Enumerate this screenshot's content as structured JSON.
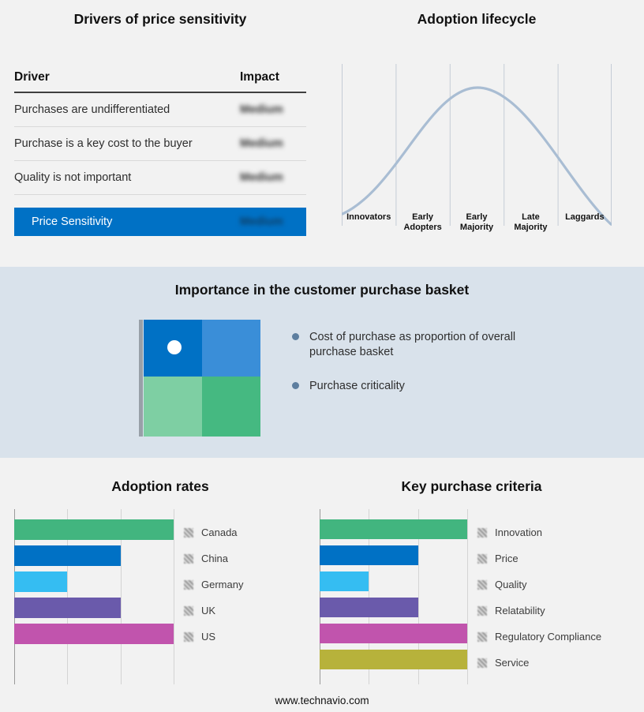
{
  "page": {
    "footer": "www.technavio.com"
  },
  "drivers": {
    "title": "Drivers of price sensitivity",
    "columns": {
      "driver": "Driver",
      "impact": "Impact"
    },
    "rows": [
      {
        "driver": "Purchases are undifferentiated",
        "impact": "Medium"
      },
      {
        "driver": "Purchase is a key cost to the buyer",
        "impact": "Medium"
      },
      {
        "driver": "Quality is not important",
        "impact": "Medium"
      }
    ],
    "summary": {
      "label": "Price Sensitivity",
      "impact": "Medium"
    },
    "accent_color": "#0071c5",
    "impact_values_blurred": true
  },
  "lifecycle": {
    "title": "Adoption lifecycle",
    "stages": [
      "Innovators",
      "Early\nAdopters",
      "Early\nMajority",
      "Late\nMajority",
      "Laggards"
    ]
  },
  "basket": {
    "title": "Importance in the customer purchase basket",
    "bullets": [
      "Cost of purchase as proportion of overall purchase basket",
      "Purchase criticality"
    ],
    "quadrant_colors": {
      "top_left": "#0071c5",
      "top_right": "#3a8ed8",
      "bottom_left": "#7ecfa3",
      "bottom_right": "#45b981"
    },
    "marker": "white-dot-in-top-left-quadrant"
  },
  "chart_data": [
    {
      "type": "line",
      "title": "Adoption lifecycle",
      "categories": [
        "Innovators",
        "Early Adopters",
        "Early Majority",
        "Late Majority",
        "Laggards"
      ],
      "values_relative": [
        0.1,
        0.6,
        1.0,
        0.6,
        0.05
      ],
      "xlabel": "",
      "ylabel": "",
      "grid": "vertical",
      "line_color": "#a9bdd3",
      "description": "Bell-shaped adoption curve peaking at Early Majority"
    },
    {
      "type": "bar",
      "orientation": "horizontal",
      "title": "Adoption rates",
      "categories": [
        "Canada",
        "China",
        "Germany",
        "UK",
        "US"
      ],
      "values": [
        3,
        2,
        1,
        2,
        3
      ],
      "xlim": [
        0,
        3
      ],
      "gridlines": 4,
      "colors": [
        "#42b57f",
        "#0071c5",
        "#35bdf2",
        "#6a5aab",
        "#c154ad"
      ],
      "legend_position": "right"
    },
    {
      "type": "bar",
      "orientation": "horizontal",
      "title": "Key purchase criteria",
      "categories": [
        "Innovation",
        "Price",
        "Quality",
        "Relatability",
        "Regulatory Compliance",
        "Service"
      ],
      "values": [
        3,
        2,
        1,
        2,
        3,
        3
      ],
      "xlim": [
        0,
        3
      ],
      "gridlines": 4,
      "colors": [
        "#42b57f",
        "#0071c5",
        "#35bdf2",
        "#6a5aab",
        "#c154ad",
        "#b7b23b"
      ],
      "legend_position": "right"
    }
  ]
}
